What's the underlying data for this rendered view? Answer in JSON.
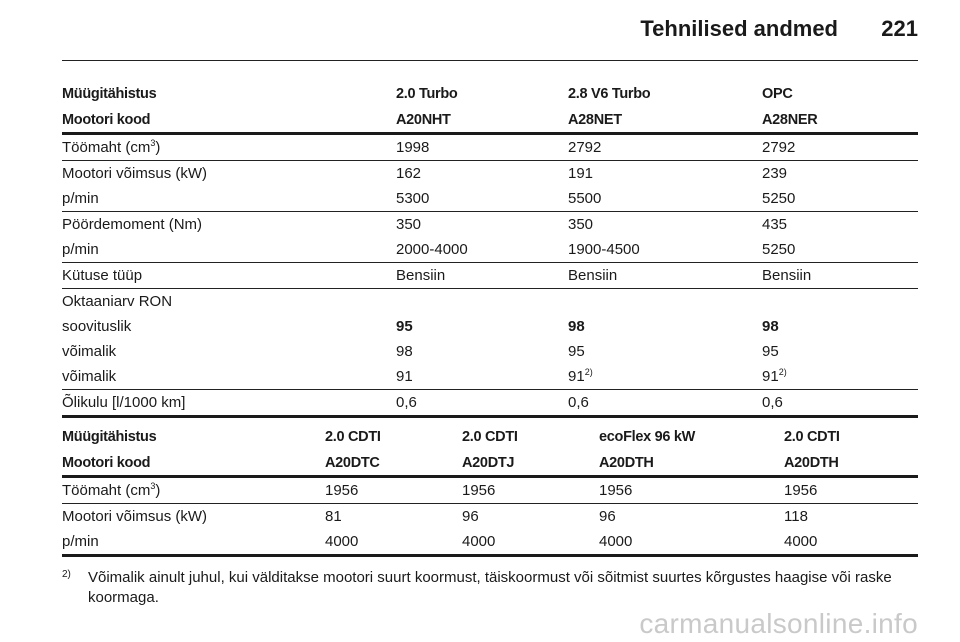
{
  "header": {
    "title": "Tehnilised andmed",
    "page_number": "221"
  },
  "table1": {
    "head_label1": "Müügitähistus",
    "head_label2": "Mootori kood",
    "models": [
      "2.0 Turbo",
      "2.8 V6 Turbo",
      "OPC"
    ],
    "codes": [
      "A20NHT",
      "A28NET",
      "A28NER"
    ],
    "displacement_label": "Töömaht (cm",
    "displacement_unit_sup": "3",
    "displacement_close": ")",
    "displacement": [
      "1998",
      "2792",
      "2792"
    ],
    "power_label": "Mootori võimsus (kW)",
    "power": [
      "162",
      "191",
      "239"
    ],
    "power_rpm_label": "p/min",
    "power_rpm": [
      "5300",
      "5500",
      "5250"
    ],
    "torque_label": "Pöördemoment (Nm)",
    "torque": [
      "350",
      "350",
      "435"
    ],
    "torque_rpm_label": "p/min",
    "torque_rpm": [
      "2000-4000",
      "1900-4500",
      "5250"
    ],
    "fuel_label": "Kütuse tüüp",
    "fuel": [
      "Bensiin",
      "Bensiin",
      "Bensiin"
    ],
    "octane_label": "Oktaaniarv RON",
    "recommended_label": "soovituslik",
    "recommended": [
      "95",
      "98",
      "98"
    ],
    "possible_label": "võimalik",
    "possible": [
      "98",
      "95",
      "95"
    ],
    "possible2_label": "võimalik",
    "possible2": [
      "91",
      "91",
      "91"
    ],
    "possible2_sup": [
      "",
      "2)",
      "2)"
    ],
    "oil_label": "Õlikulu [l/1000 km]",
    "oil": [
      "0,6",
      "0,6",
      "0,6"
    ]
  },
  "table2": {
    "head_label1": "Müügitähistus",
    "head_label2": "Mootori kood",
    "models": [
      "2.0 CDTI",
      "2.0 CDTI",
      "ecoFlex 96 kW",
      "2.0 CDTI"
    ],
    "codes": [
      "A20DTC",
      "A20DTJ",
      "A20DTH",
      "A20DTH"
    ],
    "displacement_label": "Töömaht (cm",
    "displacement_unit_sup": "3",
    "displacement_close": ")",
    "displacement": [
      "1956",
      "1956",
      "1956",
      "1956"
    ],
    "power_label": "Mootori võimsus (kW)",
    "power": [
      "81",
      "96",
      "96",
      "118"
    ],
    "power_rpm_label": "p/min",
    "power_rpm": [
      "4000",
      "4000",
      "4000",
      "4000"
    ]
  },
  "footnote": {
    "mark": "2)",
    "text": "Võimalik ainult juhul, kui välditakse mootori suurt koormust, täiskoormust või sõitmist suurtes kõrgustes haagise või raske koormaga."
  },
  "watermark": "carmanualsonline.info"
}
